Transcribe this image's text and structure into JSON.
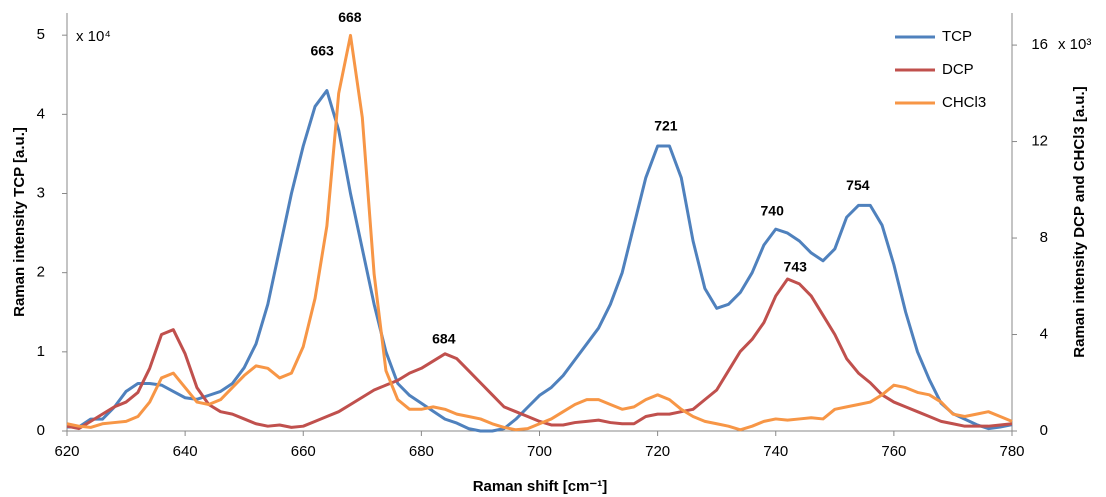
{
  "chart_data": {
    "type": "line",
    "x_label": "Raman shift [cm⁻¹]",
    "y_label": "Raman intensity TCP [a.u.]",
    "y2_label": "Raman intensity DCP and CHCl3 [a.u.]",
    "y_multiplier": "x 10⁴",
    "y2_multiplier": "x 10³",
    "x": [
      620,
      622,
      624,
      626,
      628,
      630,
      632,
      634,
      636,
      638,
      640,
      642,
      644,
      646,
      648,
      650,
      652,
      654,
      656,
      658,
      660,
      662,
      664,
      666,
      668,
      670,
      672,
      674,
      676,
      678,
      680,
      682,
      684,
      686,
      688,
      690,
      692,
      694,
      696,
      698,
      700,
      702,
      704,
      706,
      708,
      710,
      712,
      714,
      716,
      718,
      720,
      722,
      724,
      726,
      728,
      730,
      732,
      734,
      736,
      738,
      740,
      742,
      744,
      746,
      748,
      750,
      752,
      754,
      756,
      758,
      760,
      762,
      764,
      766,
      768,
      770,
      772,
      774,
      776,
      778,
      780
    ],
    "xlim": [
      620,
      780
    ],
    "xticks": [
      620,
      640,
      660,
      680,
      700,
      720,
      740,
      760,
      780
    ],
    "ylim": [
      0,
      5.28
    ],
    "yticks": [
      0,
      1,
      2,
      3,
      4,
      5
    ],
    "y2lim": [
      0,
      17.33
    ],
    "y2ticks": [
      0,
      4,
      8,
      12,
      16
    ],
    "legend": "top-right",
    "series": [
      {
        "name": "TCP",
        "color": "#4f81bd",
        "axis": "y",
        "values": [
          0.05,
          0.05,
          0.15,
          0.15,
          0.3,
          0.5,
          0.6,
          0.6,
          0.58,
          0.5,
          0.42,
          0.4,
          0.45,
          0.5,
          0.6,
          0.8,
          1.1,
          1.6,
          2.3,
          3.0,
          3.6,
          4.1,
          4.3,
          3.8,
          3.0,
          2.3,
          1.6,
          1.0,
          0.6,
          0.45,
          0.35,
          0.25,
          0.15,
          0.1,
          0.03,
          0.0,
          0.0,
          0.03,
          0.15,
          0.3,
          0.45,
          0.55,
          0.7,
          0.9,
          1.1,
          1.3,
          1.6,
          2.0,
          2.6,
          3.2,
          3.6,
          3.6,
          3.2,
          2.4,
          1.8,
          1.55,
          1.6,
          1.75,
          2.0,
          2.35,
          2.55,
          2.5,
          2.4,
          2.25,
          2.15,
          2.3,
          2.7,
          2.85,
          2.85,
          2.6,
          2.1,
          1.5,
          1.0,
          0.65,
          0.35,
          0.22,
          0.15,
          0.08,
          0.03,
          0.05,
          0.08
        ]
      },
      {
        "name": "DCP",
        "color": "#c0504d",
        "axis": "y2",
        "values": [
          0.2,
          0.1,
          0.4,
          0.7,
          1.0,
          1.2,
          1.6,
          2.6,
          4.0,
          4.2,
          3.2,
          1.8,
          1.1,
          0.8,
          0.7,
          0.5,
          0.3,
          0.2,
          0.25,
          0.15,
          0.2,
          0.4,
          0.6,
          0.8,
          1.1,
          1.4,
          1.7,
          1.9,
          2.1,
          2.4,
          2.6,
          2.9,
          3.2,
          3.0,
          2.5,
          2.0,
          1.5,
          1.0,
          0.8,
          0.6,
          0.4,
          0.25,
          0.25,
          0.35,
          0.4,
          0.45,
          0.35,
          0.3,
          0.3,
          0.6,
          0.7,
          0.7,
          0.8,
          0.9,
          1.3,
          1.7,
          2.5,
          3.3,
          3.8,
          4.5,
          5.6,
          6.3,
          6.1,
          5.6,
          4.8,
          4.0,
          3.0,
          2.4,
          2.0,
          1.5,
          1.2,
          1.0,
          0.8,
          0.6,
          0.4,
          0.3,
          0.2,
          0.2,
          0.2,
          0.25,
          0.3
        ]
      },
      {
        "name": "CHCl3",
        "color": "#f79646",
        "axis": "y2",
        "values": [
          0.3,
          0.2,
          0.15,
          0.3,
          0.35,
          0.4,
          0.6,
          1.2,
          2.2,
          2.4,
          1.8,
          1.2,
          1.1,
          1.3,
          1.8,
          2.3,
          2.7,
          2.6,
          2.2,
          2.4,
          3.5,
          5.5,
          8.5,
          14.0,
          16.4,
          13.0,
          6.5,
          2.5,
          1.3,
          0.9,
          0.9,
          1.0,
          0.9,
          0.7,
          0.6,
          0.5,
          0.3,
          0.15,
          0.05,
          0.1,
          0.3,
          0.5,
          0.8,
          1.1,
          1.3,
          1.3,
          1.1,
          0.9,
          1.0,
          1.3,
          1.5,
          1.3,
          0.9,
          0.6,
          0.4,
          0.3,
          0.2,
          0.05,
          0.2,
          0.4,
          0.5,
          0.45,
          0.5,
          0.55,
          0.5,
          0.9,
          1.0,
          1.1,
          1.2,
          1.5,
          1.9,
          1.8,
          1.6,
          1.5,
          1.2,
          0.7,
          0.6,
          0.7,
          0.8,
          0.6,
          0.4
        ]
      }
    ],
    "annotations": [
      {
        "text": "663",
        "x": 663.2,
        "y": 4.79
      },
      {
        "text": "668",
        "x": 667.9,
        "y": 5.21
      },
      {
        "text": "684",
        "x": 683.8,
        "y": 1.15
      },
      {
        "text": "721",
        "x": 721.4,
        "y": 3.84
      },
      {
        "text": "740",
        "x": 739.4,
        "y": 2.77
      },
      {
        "text": "743",
        "x": 743.3,
        "y": 2.06
      },
      {
        "text": "754",
        "x": 753.9,
        "y": 3.09
      }
    ]
  }
}
